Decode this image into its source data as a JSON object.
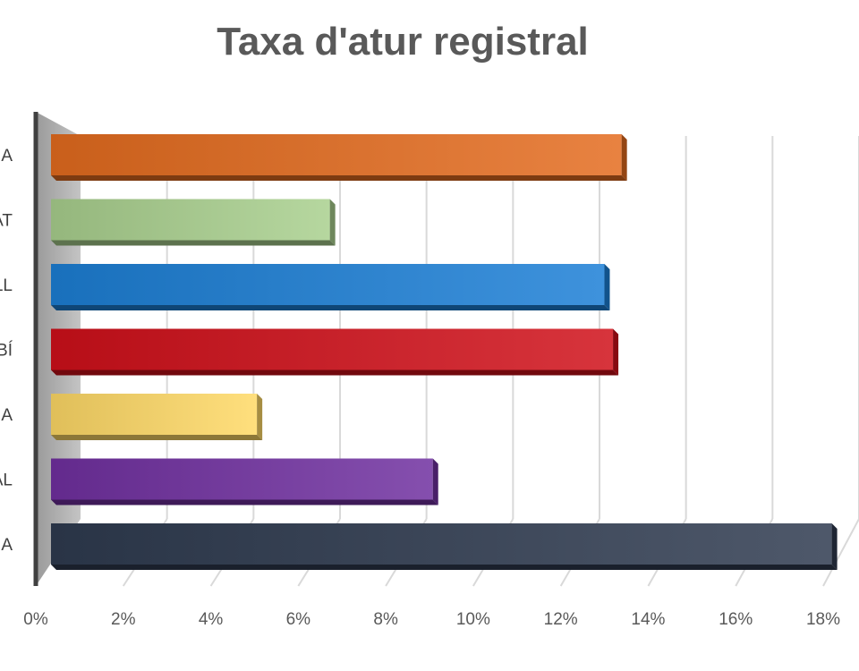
{
  "chart_data": {
    "type": "bar",
    "orientation": "horizontal",
    "title": "Taxa d'atur registral",
    "xlabel": "",
    "ylabel": "",
    "categories": [
      "A",
      "AT",
      "LL",
      "BÍ",
      "A",
      "AL",
      "A"
    ],
    "values": [
      13.3,
      6.5,
      12.9,
      13.1,
      4.8,
      8.9,
      18.2
    ],
    "colors": [
      "#E46C1F",
      "#A9D08E",
      "#1C7FD6",
      "#D0101A",
      "#FFD966",
      "#7030A0",
      "#2F3B50"
    ],
    "xlim": [
      0,
      18
    ],
    "tick_labels": [
      "0%",
      "2%",
      "4%",
      "6%",
      "8%",
      "10%",
      "12%",
      "14%",
      "16%",
      "18%"
    ],
    "grid": true,
    "legend": "none",
    "style": "3d"
  }
}
